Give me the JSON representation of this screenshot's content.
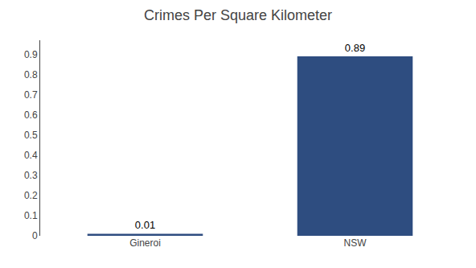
{
  "chart_data": {
    "type": "bar",
    "title": "Crimes Per Square Kilometer",
    "categories": [
      "Gineroi",
      "NSW"
    ],
    "values": [
      0.01,
      0.89
    ],
    "color": "#2e4d80",
    "ylim": [
      0,
      0.97
    ],
    "yticks": [
      0,
      0.1,
      0.2,
      0.3,
      0.4,
      0.5,
      0.6,
      0.7,
      0.8,
      0.9
    ],
    "grid": false,
    "data_labels": true
  }
}
